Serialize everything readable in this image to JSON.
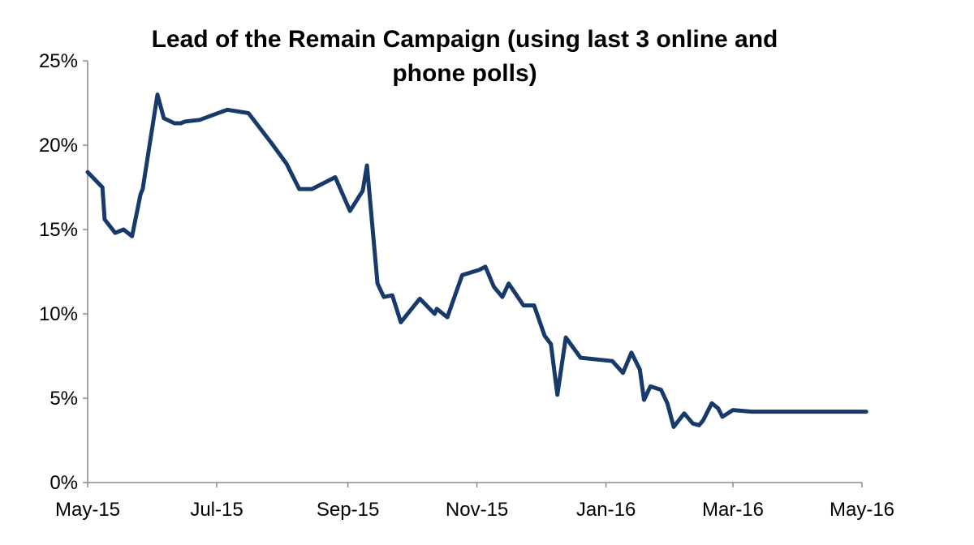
{
  "chart_data": {
    "type": "line",
    "title_lines": [
      "Lead of the Remain Campaign (using last 3 online and",
      "phone polls)"
    ],
    "xlabel": "",
    "ylabel": "",
    "x_tick_labels": [
      "May-15",
      "Jul-15",
      "Sep-15",
      "Nov-15",
      "Jan-16",
      "Mar-16",
      "May-16"
    ],
    "x_tick_dates": [
      "2015-05-01",
      "2015-07-01",
      "2015-09-01",
      "2015-11-01",
      "2016-01-01",
      "2016-03-01",
      "2016-05-01"
    ],
    "xlim": [
      "2015-05-01",
      "2016-05-01"
    ],
    "y_tick_labels": [
      "0%",
      "5%",
      "10%",
      "15%",
      "20%",
      "25%"
    ],
    "y_ticks": [
      0,
      5,
      10,
      15,
      20,
      25
    ],
    "ylim": [
      0,
      25
    ],
    "grid": false,
    "legend": "none",
    "line_color": "#173A6A",
    "series": [
      {
        "x": [
          "2015-05-01",
          "2015-05-08",
          "2015-05-09",
          "2015-05-14",
          "2015-05-18",
          "2015-05-22",
          "2015-05-26",
          "2015-05-27",
          "2015-06-03",
          "2015-06-06",
          "2015-06-11",
          "2015-06-14",
          "2015-06-16",
          "2015-06-23",
          "2015-07-06",
          "2015-07-16",
          "2015-07-27",
          "2015-08-03",
          "2015-08-09",
          "2015-08-15",
          "2015-08-26",
          "2015-09-02",
          "2015-09-08",
          "2015-09-10",
          "2015-09-15",
          "2015-09-18",
          "2015-09-22",
          "2015-09-24",
          "2015-09-26",
          "2015-10-05",
          "2015-10-12",
          "2015-10-13",
          "2015-10-18",
          "2015-10-25",
          "2015-11-02",
          "2015-11-05",
          "2015-11-09",
          "2015-11-13",
          "2015-11-16",
          "2015-11-23",
          "2015-11-28",
          "2015-12-03",
          "2015-12-06",
          "2015-12-09",
          "2015-12-13",
          "2015-12-20",
          "2016-01-04",
          "2016-01-09",
          "2016-01-13",
          "2016-01-17",
          "2016-01-19",
          "2016-01-22",
          "2016-01-27",
          "2016-01-30",
          "2016-02-02",
          "2016-02-07",
          "2016-02-11",
          "2016-02-14",
          "2016-02-16",
          "2016-02-20",
          "2016-02-23",
          "2016-02-25",
          "2016-03-01",
          "2016-03-10",
          "2016-03-16",
          "2016-03-19",
          "2016-03-21",
          "2016-03-24",
          "2016-03-28",
          "2016-03-31",
          "2016-04-02",
          "2016-04-06",
          "2016-04-09",
          "2016-04-12",
          "2016-04-14",
          "2016-04-18",
          "2016-04-21",
          "2016-04-25",
          "2016-04-27",
          "2016-04-29",
          "2016-05-03"
        ],
        "y": [
          18.4,
          17.5,
          15.6,
          14.8,
          15.0,
          14.6,
          17.1,
          17.4,
          23.0,
          21.6,
          21.3,
          21.3,
          21.4,
          21.5,
          22.1,
          21.9,
          20.1,
          18.9,
          17.4,
          17.4,
          18.1,
          16.1,
          17.3,
          18.8,
          11.8,
          11.0,
          11.1,
          10.3,
          9.5,
          10.9,
          10.0,
          10.3,
          9.8,
          12.3,
          12.6,
          12.8,
          11.6,
          11.0,
          11.8,
          10.5,
          10.5,
          8.7,
          8.2,
          5.2,
          8.6,
          7.4,
          7.2,
          6.5,
          7.7,
          6.7,
          4.9,
          5.7,
          5.5,
          4.7,
          3.3,
          4.1,
          3.5,
          3.4,
          3.7,
          4.7,
          4.4,
          3.9,
          4.3,
          4.2,
          4.2,
          4.2,
          4.2,
          4.2,
          4.2,
          4.2,
          4.2,
          4.2,
          4.2,
          4.2,
          4.2,
          4.2,
          4.2,
          4.2,
          4.2,
          4.2,
          4.2
        ]
      }
    ]
  }
}
